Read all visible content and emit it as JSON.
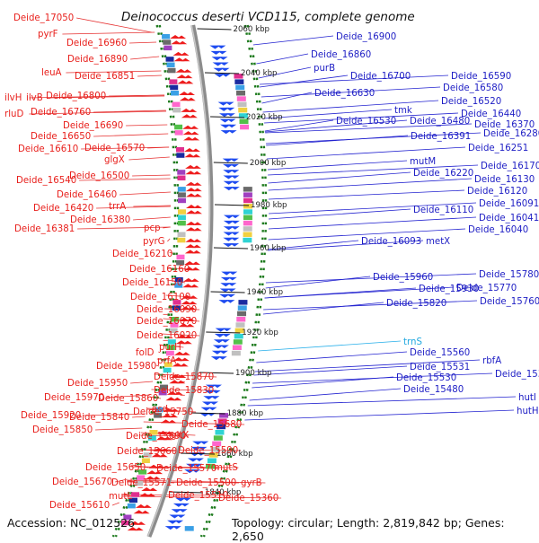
{
  "title": "Deinococcus deserti VCD115, complete genome",
  "footer": {
    "accession": "Accession: NC_012526",
    "summary": "Topology: circular; Length: 2,819,842 bp; Genes: 2,650"
  },
  "colors": {
    "left_labels": "#e8201c",
    "right_labels": "#1d1dc4",
    "rna_label": "#1fa8e0",
    "backbone": "#8c8c8c",
    "dotted_guides": "#1c7a1c"
  },
  "scale_ticks": [
    "2060 kbp",
    "2040 kbp",
    "2020 kbp",
    "2000 kbp",
    "1980 kbp",
    "1960 kbp",
    "1940 kbp",
    "1920 kbp",
    "1900 kbp",
    "1880 kbp",
    "1860 kbp",
    "1840 kbp"
  ],
  "left_labels": [
    "Deide_17050",
    "pyrF",
    "Deide_16960",
    "Deide_16890",
    "leuA",
    "Deide_16851",
    "ilvH",
    "ilvB",
    "Deide_16800",
    "rluD",
    "Deide_16760",
    "Deide_16690",
    "Deide_16650",
    "Deide_16610",
    "Deide_16570",
    "glgX",
    "Deide_16540",
    "Deide_16500",
    "Deide_16460",
    "Deide_16420",
    "trrA",
    "Deide_16380",
    "Deide_16381",
    "pcp",
    "pyrG",
    "Deide_16210",
    "Deide_16160",
    "Deide_16150",
    "Deide_16100",
    "Deide_16090",
    "Deide_16070",
    "Deide_16020",
    "folD",
    "purH",
    "prfA",
    "Deide_15980",
    "Deide_15870",
    "Deide_15950",
    "Deide_15830",
    "Deide_15970",
    "Deide_15860",
    "asd",
    "Deide_15750",
    "Deide_15920",
    "Deide_15840",
    "Deide_15680",
    "Deide_15850",
    "Deide_15690",
    "gltX",
    "Deide_15660",
    "Deide_15590",
    "Deide_15650",
    "Deide_15570",
    "mutS",
    "Deide_15670",
    "Deide_15571",
    "Deide_15500",
    "gyrB",
    "mutL",
    "Deide_15510",
    "Deide_15610",
    "Deide_15360"
  ],
  "right_labels": [
    "Deide_16900",
    "Deide_16860",
    "purB",
    "Deide_16700",
    "Deide_16590",
    "Deide_16580",
    "Deide_16630",
    "Deide_16520",
    "tmk",
    "Deide_16440",
    "Deide_16530",
    "Deide_16480",
    "Deide_16370",
    "Deide_16391",
    "Deide_16280",
    "Deide_16251",
    "mutM",
    "Deide_16170",
    "Deide_16220",
    "Deide_16130",
    "Deide_16120",
    "Deide_16110",
    "Deide_16091",
    "Deide_16041",
    "Deide_16093",
    "metX",
    "Deide_16040",
    "Deide_15960",
    "Deide_15780",
    "Deide_15930",
    "Deide_15770",
    "Deide_15820",
    "Deide_15760",
    "trnS",
    "Deide_15560",
    "rbfA",
    "Deide_15531",
    "Deide_15391",
    "Deide_15530",
    "Deide_15480",
    "hutI",
    "hutH"
  ]
}
